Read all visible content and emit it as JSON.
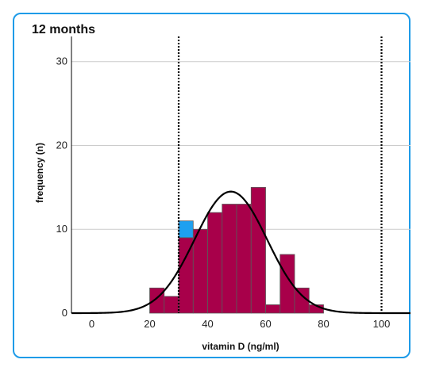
{
  "chart_data": {
    "type": "bar",
    "title": "12 months",
    "xlabel": "vitamin D (ng/ml)",
    "ylabel": "frequency (n)",
    "xlim": [
      -7,
      110
    ],
    "ylim": [
      0,
      33
    ],
    "x_ticks": [
      0,
      20,
      40,
      60,
      80,
      100
    ],
    "y_ticks": [
      0,
      10,
      20,
      30
    ],
    "grid": {
      "horizontal": true,
      "vertical": false
    },
    "bin_width": 5,
    "bins": [
      {
        "start": 20,
        "end": 25,
        "value": 3
      },
      {
        "start": 25,
        "end": 30,
        "value": 2
      },
      {
        "start": 30,
        "end": 35,
        "value": 9
      },
      {
        "start": 35,
        "end": 40,
        "value": 10
      },
      {
        "start": 40,
        "end": 45,
        "value": 12
      },
      {
        "start": 45,
        "end": 50,
        "value": 13
      },
      {
        "start": 50,
        "end": 55,
        "value": 13
      },
      {
        "start": 55,
        "end": 60,
        "value": 15
      },
      {
        "start": 60,
        "end": 65,
        "value": 1
      },
      {
        "start": 65,
        "end": 70,
        "value": 7
      },
      {
        "start": 70,
        "end": 75,
        "value": 3
      },
      {
        "start": 75,
        "end": 80,
        "value": 1
      }
    ],
    "highlight_bins": [
      {
        "start": 30,
        "end": 35,
        "from": 9,
        "to": 11
      }
    ],
    "normal_curve": {
      "mean": 48,
      "sd": 12.5,
      "peak": 14.5,
      "color": "#000000"
    },
    "reference_lines": [
      30,
      100
    ],
    "colors": {
      "bar": "#a8004a",
      "highlight": "#1ea0f0",
      "bar_edge": "#5a5a5a",
      "frame": "#1e9be8",
      "grid": "#cccccc"
    }
  }
}
